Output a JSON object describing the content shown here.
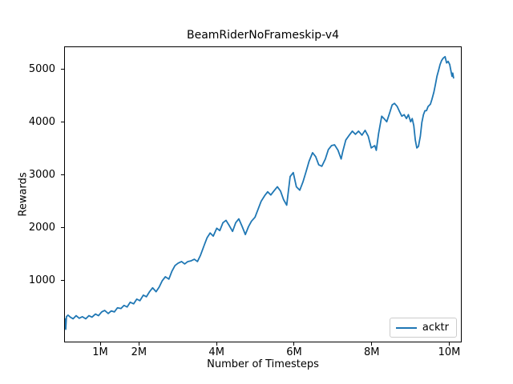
{
  "chart_data": {
    "type": "line",
    "title": "BeamRiderNoFrameskip-v4",
    "xlabel": "Number of Timesteps",
    "ylabel": "Rewards",
    "xlim_millions": [
      0.07,
      10.32
    ],
    "ylim": [
      -175,
      5435
    ],
    "grid": false,
    "xticks": [
      {
        "value": 1,
        "label": "1M"
      },
      {
        "value": 2,
        "label": "2M"
      },
      {
        "value": 4,
        "label": "4M"
      },
      {
        "value": 6,
        "label": "6M"
      },
      {
        "value": 8,
        "label": "8M"
      },
      {
        "value": 10,
        "label": "10M"
      }
    ],
    "yticks": [
      {
        "value": 1000,
        "label": "1000"
      },
      {
        "value": 2000,
        "label": "2000"
      },
      {
        "value": 3000,
        "label": "3000"
      },
      {
        "value": 4000,
        "label": "4000"
      },
      {
        "value": 5000,
        "label": "5000"
      }
    ],
    "legend": {
      "position": "lower-right",
      "entries": [
        {
          "label": "acktr",
          "color": "#1f77b4"
        }
      ]
    },
    "series": [
      {
        "name": "acktr",
        "color": "#1f77b4",
        "linewidth": 1.8,
        "x_millions": [
          0.07,
          0.09,
          0.11,
          0.15,
          0.21,
          0.28,
          0.36,
          0.44,
          0.52,
          0.61,
          0.69,
          0.77,
          0.86,
          0.94,
          1.02,
          1.1,
          1.19,
          1.27,
          1.35,
          1.43,
          1.52,
          1.6,
          1.68,
          1.76,
          1.85,
          1.93,
          2.01,
          2.1,
          2.18,
          2.26,
          2.34,
          2.43,
          2.51,
          2.59,
          2.67,
          2.76,
          2.84,
          2.92,
          3.0,
          3.09,
          3.17,
          3.25,
          3.34,
          3.42,
          3.5,
          3.58,
          3.67,
          3.75,
          3.83,
          3.91,
          4.0,
          4.08,
          4.16,
          4.24,
          4.33,
          4.41,
          4.49,
          4.57,
          4.66,
          4.74,
          4.82,
          4.9,
          4.99,
          5.07,
          5.15,
          5.24,
          5.32,
          5.4,
          5.48,
          5.57,
          5.65,
          5.73,
          5.81,
          5.9,
          5.98,
          6.06,
          6.15,
          6.23,
          6.31,
          6.39,
          6.48,
          6.56,
          6.64,
          6.72,
          6.81,
          6.89,
          6.97,
          7.05,
          7.14,
          7.22,
          7.26,
          7.34,
          7.43,
          7.51,
          7.59,
          7.67,
          7.76,
          7.84,
          7.92,
          8.0,
          8.09,
          8.13,
          8.19,
          8.27,
          8.33,
          8.4,
          8.48,
          8.54,
          8.6,
          8.67,
          8.73,
          8.79,
          8.85,
          8.91,
          8.96,
          9.02,
          9.06,
          9.1,
          9.14,
          9.18,
          9.22,
          9.27,
          9.31,
          9.35,
          9.39,
          9.43,
          9.47,
          9.53,
          9.57,
          9.62,
          9.66,
          9.7,
          9.74,
          9.78,
          9.82,
          9.86,
          9.91,
          9.95,
          9.99,
          10.03,
          10.07,
          10.09,
          10.11,
          10.13
        ],
        "y": [
          260,
          60,
          300,
          330,
          290,
          260,
          320,
          270,
          300,
          260,
          320,
          290,
          350,
          320,
          390,
          420,
          360,
          410,
          390,
          470,
          455,
          515,
          485,
          575,
          545,
          635,
          605,
          710,
          680,
          775,
          850,
          775,
          865,
          985,
          1060,
          1015,
          1165,
          1275,
          1320,
          1350,
          1305,
          1350,
          1365,
          1395,
          1350,
          1470,
          1650,
          1805,
          1895,
          1835,
          1985,
          1940,
          2090,
          2135,
          2030,
          1925,
          2090,
          2165,
          2015,
          1865,
          2015,
          2120,
          2195,
          2350,
          2500,
          2605,
          2680,
          2620,
          2695,
          2775,
          2695,
          2530,
          2425,
          2970,
          3045,
          2775,
          2710,
          2865,
          3060,
          3260,
          3425,
          3350,
          3195,
          3165,
          3305,
          3485,
          3560,
          3575,
          3470,
          3305,
          3440,
          3665,
          3760,
          3835,
          3775,
          3835,
          3760,
          3850,
          3740,
          3515,
          3560,
          3470,
          3790,
          4120,
          4075,
          4015,
          4195,
          4335,
          4365,
          4305,
          4210,
          4120,
          4150,
          4075,
          4150,
          4015,
          4075,
          3940,
          3665,
          3515,
          3545,
          3740,
          4000,
          4150,
          4225,
          4225,
          4305,
          4350,
          4440,
          4575,
          4725,
          4880,
          4985,
          5105,
          5180,
          5225,
          5255,
          5135,
          5165,
          5105,
          4955,
          4880,
          4940,
          4850
        ]
      }
    ]
  }
}
